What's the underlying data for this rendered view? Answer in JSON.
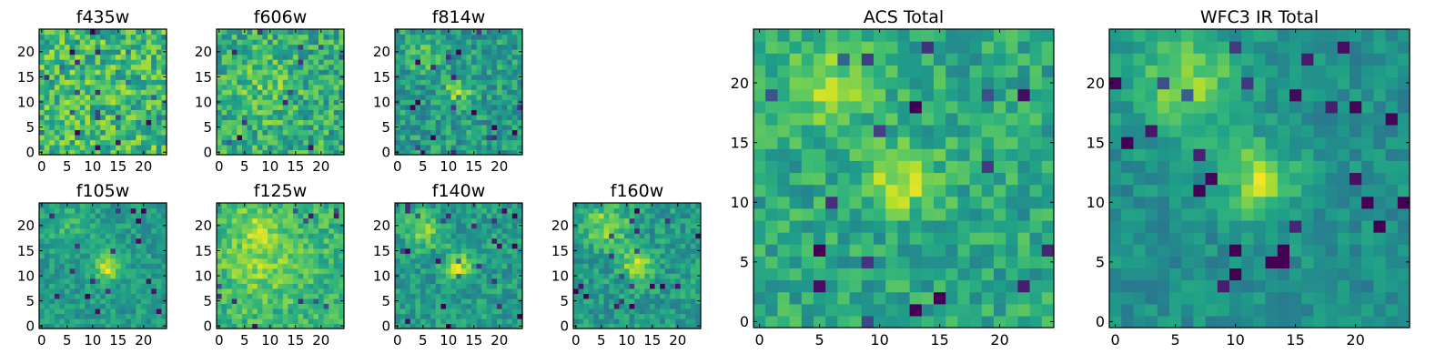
{
  "chart_data": [
    {
      "type": "heatmap",
      "title": "f435w",
      "colormap": "viridis",
      "grid_size": 25,
      "xticks": [
        0,
        5,
        10,
        15,
        20
      ],
      "yticks": [
        0,
        5,
        10,
        15,
        20
      ],
      "xlim": [
        -0.5,
        24.5
      ],
      "ylim": [
        -0.5,
        24.5
      ],
      "blobs": [],
      "noise": 0.22,
      "background": 0.68
    },
    {
      "type": "heatmap",
      "title": "f606w",
      "colormap": "viridis",
      "grid_size": 25,
      "xticks": [
        0,
        5,
        10,
        15,
        20
      ],
      "yticks": [
        0,
        5,
        10,
        15,
        20
      ],
      "xlim": [
        -0.5,
        24.5
      ],
      "ylim": [
        -0.5,
        24.5
      ],
      "blobs": [
        {
          "x": 9,
          "y": 12,
          "amp": 0.12,
          "sigma": 4
        }
      ],
      "noise": 0.2,
      "background": 0.62
    },
    {
      "type": "heatmap",
      "title": "f814w",
      "colormap": "viridis",
      "grid_size": 25,
      "xticks": [
        0,
        5,
        10,
        15,
        20
      ],
      "yticks": [
        0,
        5,
        10,
        15,
        20
      ],
      "xlim": [
        -0.5,
        24.5
      ],
      "ylim": [
        -0.5,
        24.5
      ],
      "blobs": [
        {
          "x": 12,
          "y": 12,
          "amp": 0.32,
          "sigma": 1.8
        },
        {
          "x": 5,
          "y": 19,
          "amp": 0.18,
          "sigma": 2
        }
      ],
      "noise": 0.17,
      "background": 0.55
    },
    {
      "type": "heatmap",
      "title": "f105w",
      "colormap": "viridis",
      "grid_size": 25,
      "xticks": [
        0,
        5,
        10,
        15,
        20
      ],
      "yticks": [
        0,
        5,
        10,
        15,
        20
      ],
      "xlim": [
        -0.5,
        24.5
      ],
      "ylim": [
        -0.5,
        24.5
      ],
      "blobs": [
        {
          "x": 13,
          "y": 12,
          "amp": 0.38,
          "sigma": 1.8
        },
        {
          "x": 5,
          "y": 20,
          "amp": 0.12,
          "sigma": 3
        }
      ],
      "noise": 0.12,
      "background": 0.55
    },
    {
      "type": "heatmap",
      "title": "f125w",
      "colormap": "viridis",
      "grid_size": 25,
      "xticks": [
        0,
        5,
        10,
        15,
        20
      ],
      "yticks": [
        0,
        5,
        10,
        15,
        20
      ],
      "xlim": [
        -0.5,
        24.5
      ],
      "ylim": [
        -0.5,
        24.5
      ],
      "blobs": [
        {
          "x": 8,
          "y": 12,
          "amp": 0.15,
          "sigma": 5
        },
        {
          "x": 7,
          "y": 20,
          "amp": 0.15,
          "sigma": 3
        }
      ],
      "noise": 0.14,
      "background": 0.66
    },
    {
      "type": "heatmap",
      "title": "f140w",
      "colormap": "viridis",
      "grid_size": 25,
      "xticks": [
        0,
        5,
        10,
        15,
        20
      ],
      "yticks": [
        0,
        5,
        10,
        15,
        20
      ],
      "xlim": [
        -0.5,
        24.5
      ],
      "ylim": [
        -0.5,
        24.5
      ],
      "blobs": [
        {
          "x": 12,
          "y": 12,
          "amp": 0.35,
          "sigma": 1.8
        },
        {
          "x": 5,
          "y": 19,
          "amp": 0.25,
          "sigma": 2.5
        }
      ],
      "noise": 0.14,
      "background": 0.55
    },
    {
      "type": "heatmap",
      "title": "f160w",
      "colormap": "viridis",
      "grid_size": 25,
      "xticks": [
        0,
        5,
        10,
        15,
        20
      ],
      "yticks": [
        0,
        5,
        10,
        15,
        20
      ],
      "xlim": [
        -0.5,
        24.5
      ],
      "ylim": [
        -0.5,
        24.5
      ],
      "blobs": [
        {
          "x": 12,
          "y": 12,
          "amp": 0.35,
          "sigma": 2
        },
        {
          "x": 6,
          "y": 20,
          "amp": 0.28,
          "sigma": 3
        }
      ],
      "noise": 0.14,
      "background": 0.55
    },
    {
      "type": "heatmap",
      "title": "ACS Total",
      "colormap": "viridis",
      "grid_size": 25,
      "xticks": [
        0,
        5,
        10,
        15,
        20
      ],
      "yticks": [
        0,
        5,
        10,
        15,
        20
      ],
      "xlim": [
        -0.5,
        24.5
      ],
      "ylim": [
        -0.5,
        24.5
      ],
      "blobs": [
        {
          "x": 12,
          "y": 12,
          "amp": 0.3,
          "sigma": 2
        },
        {
          "x": 6,
          "y": 20,
          "amp": 0.25,
          "sigma": 2.5
        }
      ],
      "noise": 0.15,
      "background": 0.6
    },
    {
      "type": "heatmap",
      "title": "WFC3 IR Total",
      "colormap": "viridis",
      "grid_size": 25,
      "xticks": [
        0,
        5,
        10,
        15,
        20
      ],
      "yticks": [
        0,
        5,
        10,
        15,
        20
      ],
      "xlim": [
        -0.5,
        24.5
      ],
      "ylim": [
        -0.5,
        24.5
      ],
      "blobs": [
        {
          "x": 12,
          "y": 12,
          "amp": 0.4,
          "sigma": 2
        },
        {
          "x": 6,
          "y": 20,
          "amp": 0.32,
          "sigma": 3
        }
      ],
      "noise": 0.1,
      "background": 0.5
    }
  ]
}
